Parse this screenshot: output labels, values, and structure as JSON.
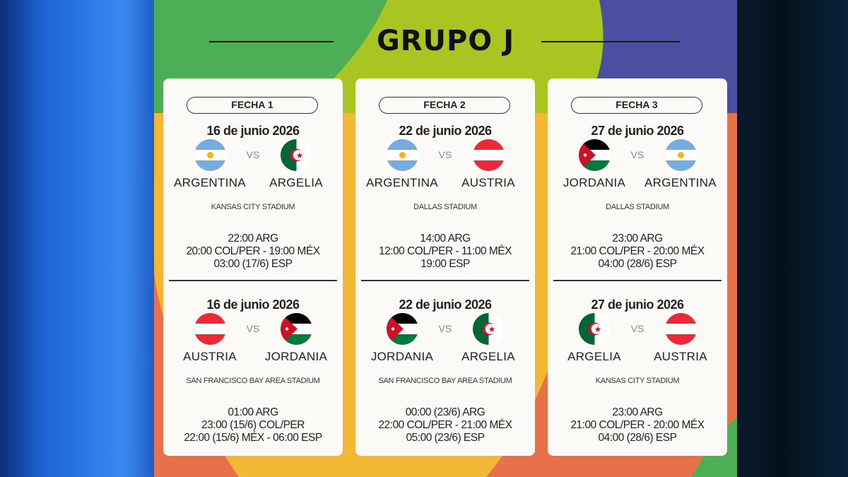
{
  "title": "GRUPO J",
  "colors": {
    "green": "#4caf55",
    "lime": "#a8c522",
    "purple": "#4a4fa0",
    "orange": "#e8704a",
    "yellow": "#f2b733",
    "card": "#fbfaf7"
  },
  "vs_label": "VS",
  "fechas": [
    {
      "label": "FECHA 1",
      "matches": [
        {
          "date": "16 de junio 2026",
          "home": "ARGENTINA",
          "home_flag": "argentina",
          "away": "ARGELIA",
          "away_flag": "algeria",
          "stadium": "KANSAS CITY STADIUM",
          "times": [
            "22:00 ARG",
            "20:00 COL/PER - 19:00 MÉX",
            "03:00 (17/6) ESP"
          ]
        },
        {
          "date": "16 de junio 2026",
          "home": "AUSTRIA",
          "home_flag": "austria",
          "away": "JORDANIA",
          "away_flag": "jordan",
          "stadium": "SAN FRANCISCO BAY AREA STADIUM",
          "times": [
            "01:00 ARG",
            "23:00 (15/6) COL/PER",
            "22:00 (15/6) MÉX - 06:00 ESP"
          ]
        }
      ]
    },
    {
      "label": "FECHA 2",
      "matches": [
        {
          "date": "22 de junio 2026",
          "home": "ARGENTINA",
          "home_flag": "argentina",
          "away": "AUSTRIA",
          "away_flag": "austria",
          "stadium": "DALLAS STADIUM",
          "times": [
            "14:00 ARG",
            "12:00 COL/PER - 11:00 MÉX",
            "19:00 ESP"
          ]
        },
        {
          "date": "22 de junio 2026",
          "home": "JORDANIA",
          "home_flag": "jordan",
          "away": "ARGELIA",
          "away_flag": "algeria",
          "stadium": "SAN FRANCISCO BAY AREA STADIUM",
          "times": [
            "00:00 (23/6) ARG",
            "22:00 COL/PER - 21:00 MÉX",
            "05:00 (23/6) ESP"
          ]
        }
      ]
    },
    {
      "label": "FECHA 3",
      "matches": [
        {
          "date": "27 de junio 2026",
          "home": "JORDANIA",
          "home_flag": "jordan",
          "away": "ARGENTINA",
          "away_flag": "argentina",
          "stadium": "DALLAS STADIUM",
          "times": [
            "23:00 ARG",
            "21:00 COL/PER - 20:00 MÉX",
            "04:00 (28/6) ESP"
          ]
        },
        {
          "date": "27 de junio 2026",
          "home": "ARGELIA",
          "home_flag": "algeria",
          "away": "AUSTRIA",
          "away_flag": "austria",
          "stadium": "KANSAS CITY STADIUM",
          "times": [
            "23:00 ARG",
            "21:00 COL/PER - 20:00 MÉX",
            "04:00 (28/6) ESP"
          ]
        }
      ]
    }
  ]
}
